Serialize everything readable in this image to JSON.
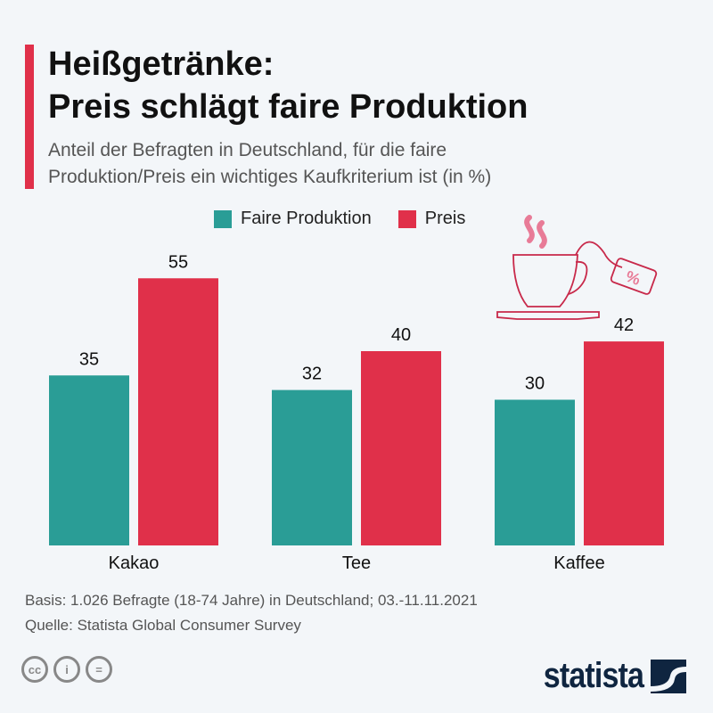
{
  "title_line1": "Heißgetränke:",
  "title_line2": "Preis schlägt faire Produktion",
  "subtitle_line1": "Anteil der Befragten in Deutschland, für die faire",
  "subtitle_line2": "Produktion/Preis ein wichtiges Kaufkriterium ist (in %)",
  "footer": {
    "basis": "Basis: 1.026 Befragte (18-74 Jahre) in Deutschland; 03.-11.11.2021",
    "source": "Quelle: Statista Global Consumer Survey"
  },
  "brand": "statista",
  "license_icons": [
    "cc-icon",
    "attribution-icon",
    "no-derivatives-icon"
  ],
  "colors": {
    "teal": "#2a9d96",
    "red": "#e0304a"
  },
  "chart_data": {
    "type": "bar",
    "categories": [
      "Kakao",
      "Tee",
      "Kaffee"
    ],
    "series": [
      {
        "name": "Faire Produktion",
        "values": [
          35,
          32,
          30
        ],
        "color": "#2a9d96"
      },
      {
        "name": "Preis",
        "values": [
          55,
          40,
          42
        ],
        "color": "#e0304a"
      }
    ],
    "ylim": [
      0,
      55
    ],
    "legend": "top-center",
    "grid": false
  }
}
